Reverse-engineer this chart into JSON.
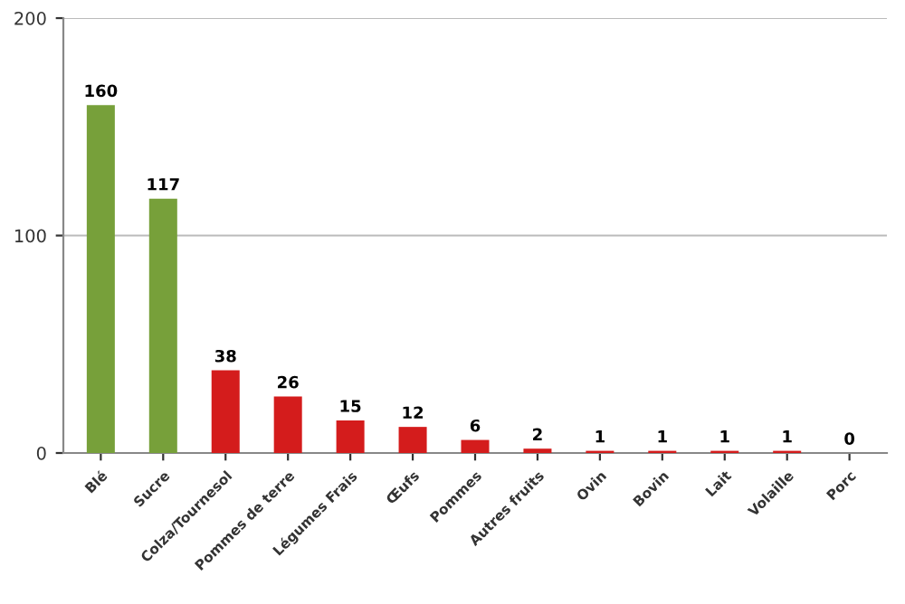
{
  "chart_data": {
    "type": "bar",
    "categories": [
      "Blé",
      "Sucre",
      "Colza/Tournesol",
      "Pommes de terre",
      "Légumes Frais",
      "Œufs",
      "Pommes",
      "Autres fruits",
      "Ovin",
      "Bovin",
      "Lait",
      "Volaille",
      "Porc"
    ],
    "values": [
      160,
      117,
      38,
      26,
      15,
      12,
      6,
      2,
      1,
      1,
      1,
      1,
      0
    ],
    "colors": [
      "#77a03a",
      "#77a03a",
      "#d41c1c",
      "#d41c1c",
      "#d41c1c",
      "#d41c1c",
      "#d41c1c",
      "#d41c1c",
      "#d41c1c",
      "#d41c1c",
      "#d41c1c",
      "#d41c1c",
      "#d41c1c"
    ],
    "ylim": [
      0,
      200
    ],
    "yticks": [
      0,
      100,
      200
    ],
    "grid": "y",
    "data_labels": true
  }
}
